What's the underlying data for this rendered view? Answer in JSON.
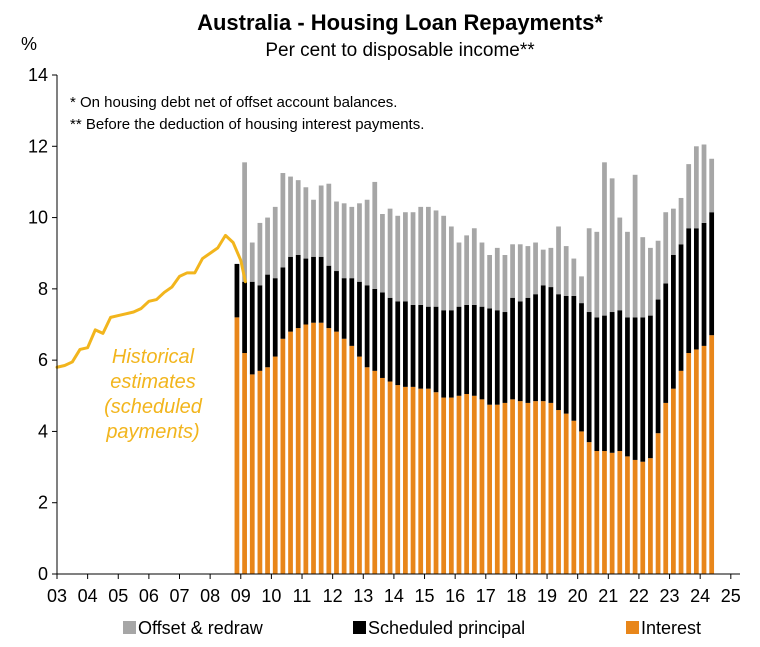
{
  "chart_data": {
    "type": "bar",
    "stacked": true,
    "title": "Australia - Housing Loan Repayments*",
    "subtitle": "Per cent to disposable income**",
    "ylabel": "%",
    "ylim": [
      0,
      14
    ],
    "yticks": [
      0,
      2,
      4,
      6,
      8,
      10,
      12,
      14
    ],
    "xlim": [
      2003,
      2025.3
    ],
    "xticks": [
      {
        "x": 2003,
        "label": "03"
      },
      {
        "x": 2004,
        "label": "04"
      },
      {
        "x": 2005,
        "label": "05"
      },
      {
        "x": 2006,
        "label": "06"
      },
      {
        "x": 2007,
        "label": "07"
      },
      {
        "x": 2008,
        "label": "08"
      },
      {
        "x": 2009,
        "label": "09"
      },
      {
        "x": 2010,
        "label": "10"
      },
      {
        "x": 2011,
        "label": "11"
      },
      {
        "x": 2012,
        "label": "12"
      },
      {
        "x": 2013,
        "label": "13"
      },
      {
        "x": 2014,
        "label": "14"
      },
      {
        "x": 2015,
        "label": "15"
      },
      {
        "x": 2016,
        "label": "16"
      },
      {
        "x": 2017,
        "label": "17"
      },
      {
        "x": 2018,
        "label": "18"
      },
      {
        "x": 2019,
        "label": "19"
      },
      {
        "x": 2020,
        "label": "20"
      },
      {
        "x": 2021,
        "label": "21"
      },
      {
        "x": 2022,
        "label": "22"
      },
      {
        "x": 2023,
        "label": "23"
      },
      {
        "x": 2024,
        "label": "24"
      },
      {
        "x": 2025,
        "label": "25"
      }
    ],
    "grid": false,
    "legend_position": "bottom",
    "notes": [
      "* On housing debt net of offset account balances.",
      "** Before the deduction of housing interest payments."
    ],
    "annotation": [
      "Historical",
      "estimates",
      "(scheduled",
      "payments)"
    ],
    "bar_dates": [
      2008.875,
      2009.125,
      2009.375,
      2009.625,
      2009.875,
      2010.125,
      2010.375,
      2010.625,
      2010.875,
      2011.125,
      2011.375,
      2011.625,
      2011.875,
      2012.125,
      2012.375,
      2012.625,
      2012.875,
      2013.125,
      2013.375,
      2013.625,
      2013.875,
      2014.125,
      2014.375,
      2014.625,
      2014.875,
      2015.125,
      2015.375,
      2015.625,
      2015.875,
      2016.125,
      2016.375,
      2016.625,
      2016.875,
      2017.125,
      2017.375,
      2017.625,
      2017.875,
      2018.125,
      2018.375,
      2018.625,
      2018.875,
      2019.125,
      2019.375,
      2019.625,
      2019.875,
      2020.125,
      2020.375,
      2020.625,
      2020.875,
      2021.125,
      2021.375,
      2021.625,
      2021.875,
      2022.125,
      2022.375,
      2022.625,
      2022.875,
      2023.125,
      2023.375,
      2023.625,
      2023.875,
      2024.125,
      2024.375
    ],
    "series": [
      {
        "name": "Interest",
        "color": "#E8861A",
        "values": [
          7.2,
          6.2,
          5.6,
          5.7,
          5.8,
          6.1,
          6.6,
          6.8,
          6.9,
          7.0,
          7.05,
          7.05,
          6.9,
          6.8,
          6.6,
          6.4,
          6.1,
          5.8,
          5.7,
          5.5,
          5.4,
          5.3,
          5.25,
          5.25,
          5.2,
          5.2,
          5.1,
          4.95,
          4.95,
          5.0,
          5.05,
          5.0,
          4.9,
          4.75,
          4.75,
          4.8,
          4.9,
          4.85,
          4.8,
          4.85,
          4.85,
          4.8,
          4.6,
          4.5,
          4.3,
          4.0,
          3.7,
          3.45,
          3.45,
          3.4,
          3.45,
          3.3,
          3.2,
          3.15,
          3.25,
          3.95,
          4.8,
          5.2,
          5.7,
          6.2,
          6.3,
          6.4,
          6.7
        ]
      },
      {
        "name": "Scheduled principal",
        "color": "#000000",
        "values": [
          1.5,
          2.0,
          2.6,
          2.4,
          2.6,
          2.2,
          2.0,
          2.1,
          2.05,
          1.85,
          1.85,
          1.85,
          1.75,
          1.7,
          1.7,
          1.9,
          2.1,
          2.3,
          2.3,
          2.4,
          2.35,
          2.35,
          2.4,
          2.3,
          2.35,
          2.3,
          2.4,
          2.45,
          2.45,
          2.5,
          2.5,
          2.55,
          2.6,
          2.7,
          2.65,
          2.55,
          2.85,
          2.8,
          2.95,
          3.0,
          3.25,
          3.25,
          3.25,
          3.3,
          3.5,
          3.6,
          3.65,
          3.75,
          3.8,
          3.95,
          3.95,
          3.9,
          4.0,
          4.05,
          4.0,
          3.75,
          3.35,
          3.75,
          3.55,
          3.5,
          3.4,
          3.45,
          3.45
        ]
      },
      {
        "name": "Offset & redraw",
        "color": "#A6A6A6",
        "values": [
          0.0,
          3.35,
          1.1,
          1.75,
          1.6,
          2.0,
          2.65,
          2.25,
          2.1,
          2.0,
          1.6,
          2.0,
          2.3,
          1.95,
          2.1,
          2.0,
          2.2,
          2.4,
          3.0,
          2.2,
          2.5,
          2.4,
          2.5,
          2.6,
          2.75,
          2.8,
          2.7,
          2.65,
          2.35,
          1.8,
          1.95,
          2.15,
          1.8,
          1.5,
          1.75,
          1.6,
          1.5,
          1.6,
          1.45,
          1.45,
          1.0,
          1.1,
          1.9,
          1.4,
          1.05,
          0.75,
          2.35,
          2.4,
          4.3,
          3.75,
          2.6,
          2.4,
          4.0,
          2.25,
          1.9,
          1.65,
          2.0,
          1.3,
          1.3,
          1.8,
          2.3,
          2.2,
          1.5
        ]
      }
    ],
    "historical_line": {
      "name": "Historical estimates (scheduled payments)",
      "color": "#F2B51D",
      "x": [
        2003.0,
        2003.25,
        2003.5,
        2003.75,
        2004.0,
        2004.25,
        2004.5,
        2004.75,
        2005.0,
        2005.25,
        2005.5,
        2005.75,
        2006.0,
        2006.25,
        2006.5,
        2006.75,
        2007.0,
        2007.25,
        2007.5,
        2007.75,
        2008.0,
        2008.25,
        2008.5,
        2008.75,
        2009.0,
        2009.15
      ],
      "y": [
        5.8,
        5.85,
        5.95,
        6.3,
        6.35,
        6.85,
        6.75,
        7.2,
        7.25,
        7.3,
        7.35,
        7.45,
        7.65,
        7.7,
        7.9,
        8.05,
        8.35,
        8.45,
        8.45,
        8.85,
        9.0,
        9.15,
        9.5,
        9.3,
        8.8,
        8.2
      ]
    }
  }
}
